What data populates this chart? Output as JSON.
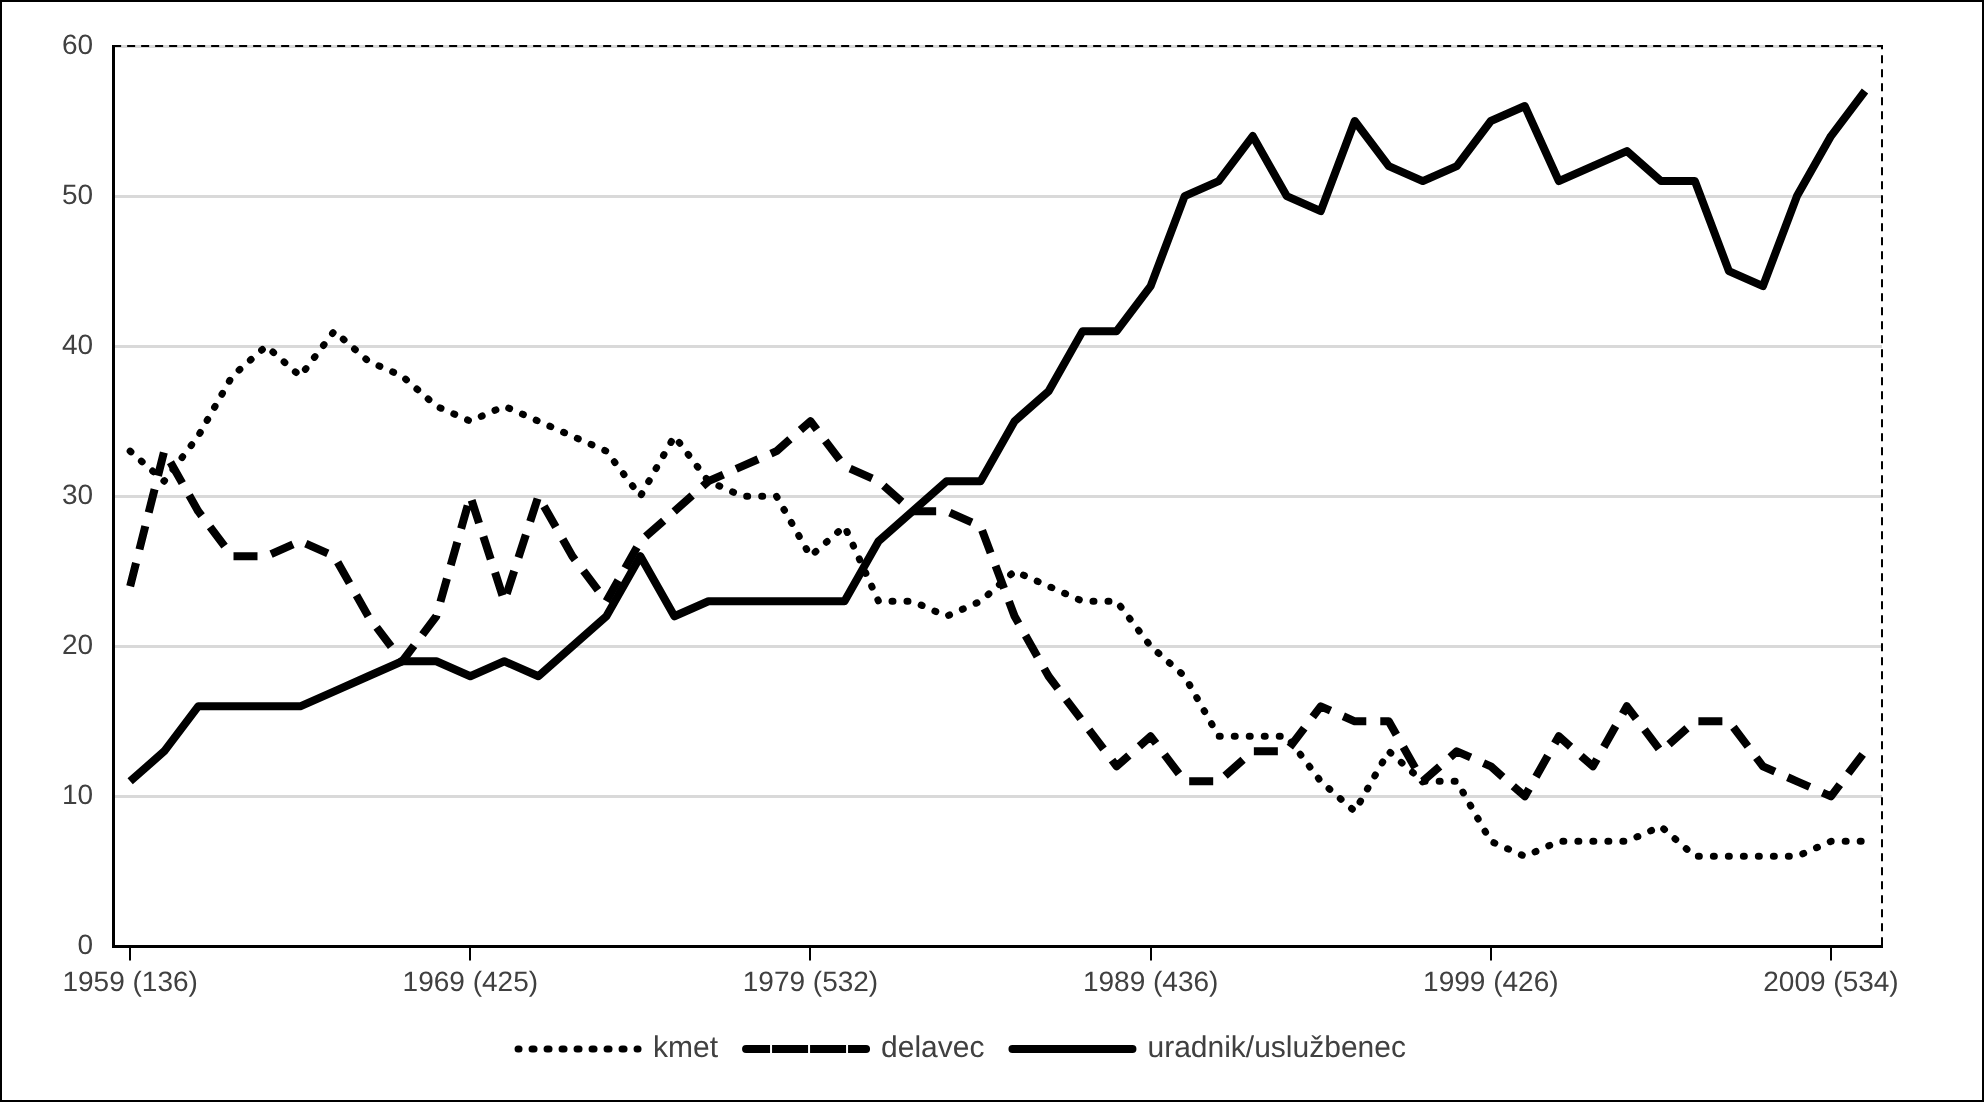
{
  "chart_data": {
    "type": "line",
    "categories": [
      "1959 (136)",
      null,
      null,
      null,
      null,
      null,
      null,
      null,
      null,
      null,
      "1969 (425)",
      null,
      null,
      null,
      null,
      null,
      null,
      null,
      null,
      null,
      "1979 (532)",
      null,
      null,
      null,
      null,
      null,
      null,
      null,
      null,
      null,
      "1989 (436)",
      null,
      null,
      null,
      null,
      null,
      null,
      null,
      null,
      null,
      "1999 (426)",
      null,
      null,
      null,
      null,
      null,
      null,
      null,
      null,
      null,
      "2009 (534)",
      null
    ],
    "series": [
      {
        "name": "kmet",
        "color": "#000000",
        "line_style": "dotted",
        "values": [
          33,
          31,
          34,
          38,
          40,
          38,
          41,
          39,
          38,
          36,
          35,
          36,
          35,
          34,
          33,
          30,
          34,
          31,
          30,
          30,
          26,
          28,
          23,
          23,
          22,
          23,
          25,
          24,
          23,
          23,
          20,
          18,
          14,
          14,
          14,
          11,
          9,
          13,
          11,
          11,
          7,
          6,
          7,
          7,
          7,
          8,
          6,
          6,
          6,
          6,
          7,
          7
        ]
      },
      {
        "name": "delavec",
        "color": "#000000",
        "line_style": "dashed",
        "values": [
          24,
          33,
          29,
          26,
          26,
          27,
          26,
          22,
          19,
          22,
          30,
          23,
          30,
          26,
          23,
          27,
          29,
          31,
          32,
          33,
          35,
          32,
          31,
          29,
          29,
          28,
          22,
          18,
          15,
          12,
          14,
          11,
          11,
          13,
          13,
          16,
          15,
          15,
          11,
          13,
          12,
          10,
          14,
          12,
          16,
          13,
          15,
          15,
          12,
          11,
          10,
          13
        ]
      },
      {
        "name": "uradnik/uslužbenec",
        "color": "#000000",
        "line_style": "solid",
        "values": [
          11,
          13,
          16,
          16,
          16,
          16,
          17,
          18,
          19,
          19,
          18,
          19,
          18,
          20,
          22,
          26,
          22,
          23,
          23,
          23,
          23,
          23,
          27,
          29,
          31,
          31,
          35,
          37,
          41,
          41,
          44,
          50,
          51,
          54,
          50,
          49,
          55,
          52,
          51,
          52,
          55,
          56,
          51,
          52,
          53,
          51,
          51,
          45,
          44,
          50,
          54,
          57
        ]
      }
    ],
    "ylim": [
      0,
      60
    ],
    "yticks": [
      0,
      10,
      20,
      30,
      40,
      50,
      60
    ],
    "grid": "y",
    "legend": "bottom",
    "marker": "none"
  }
}
